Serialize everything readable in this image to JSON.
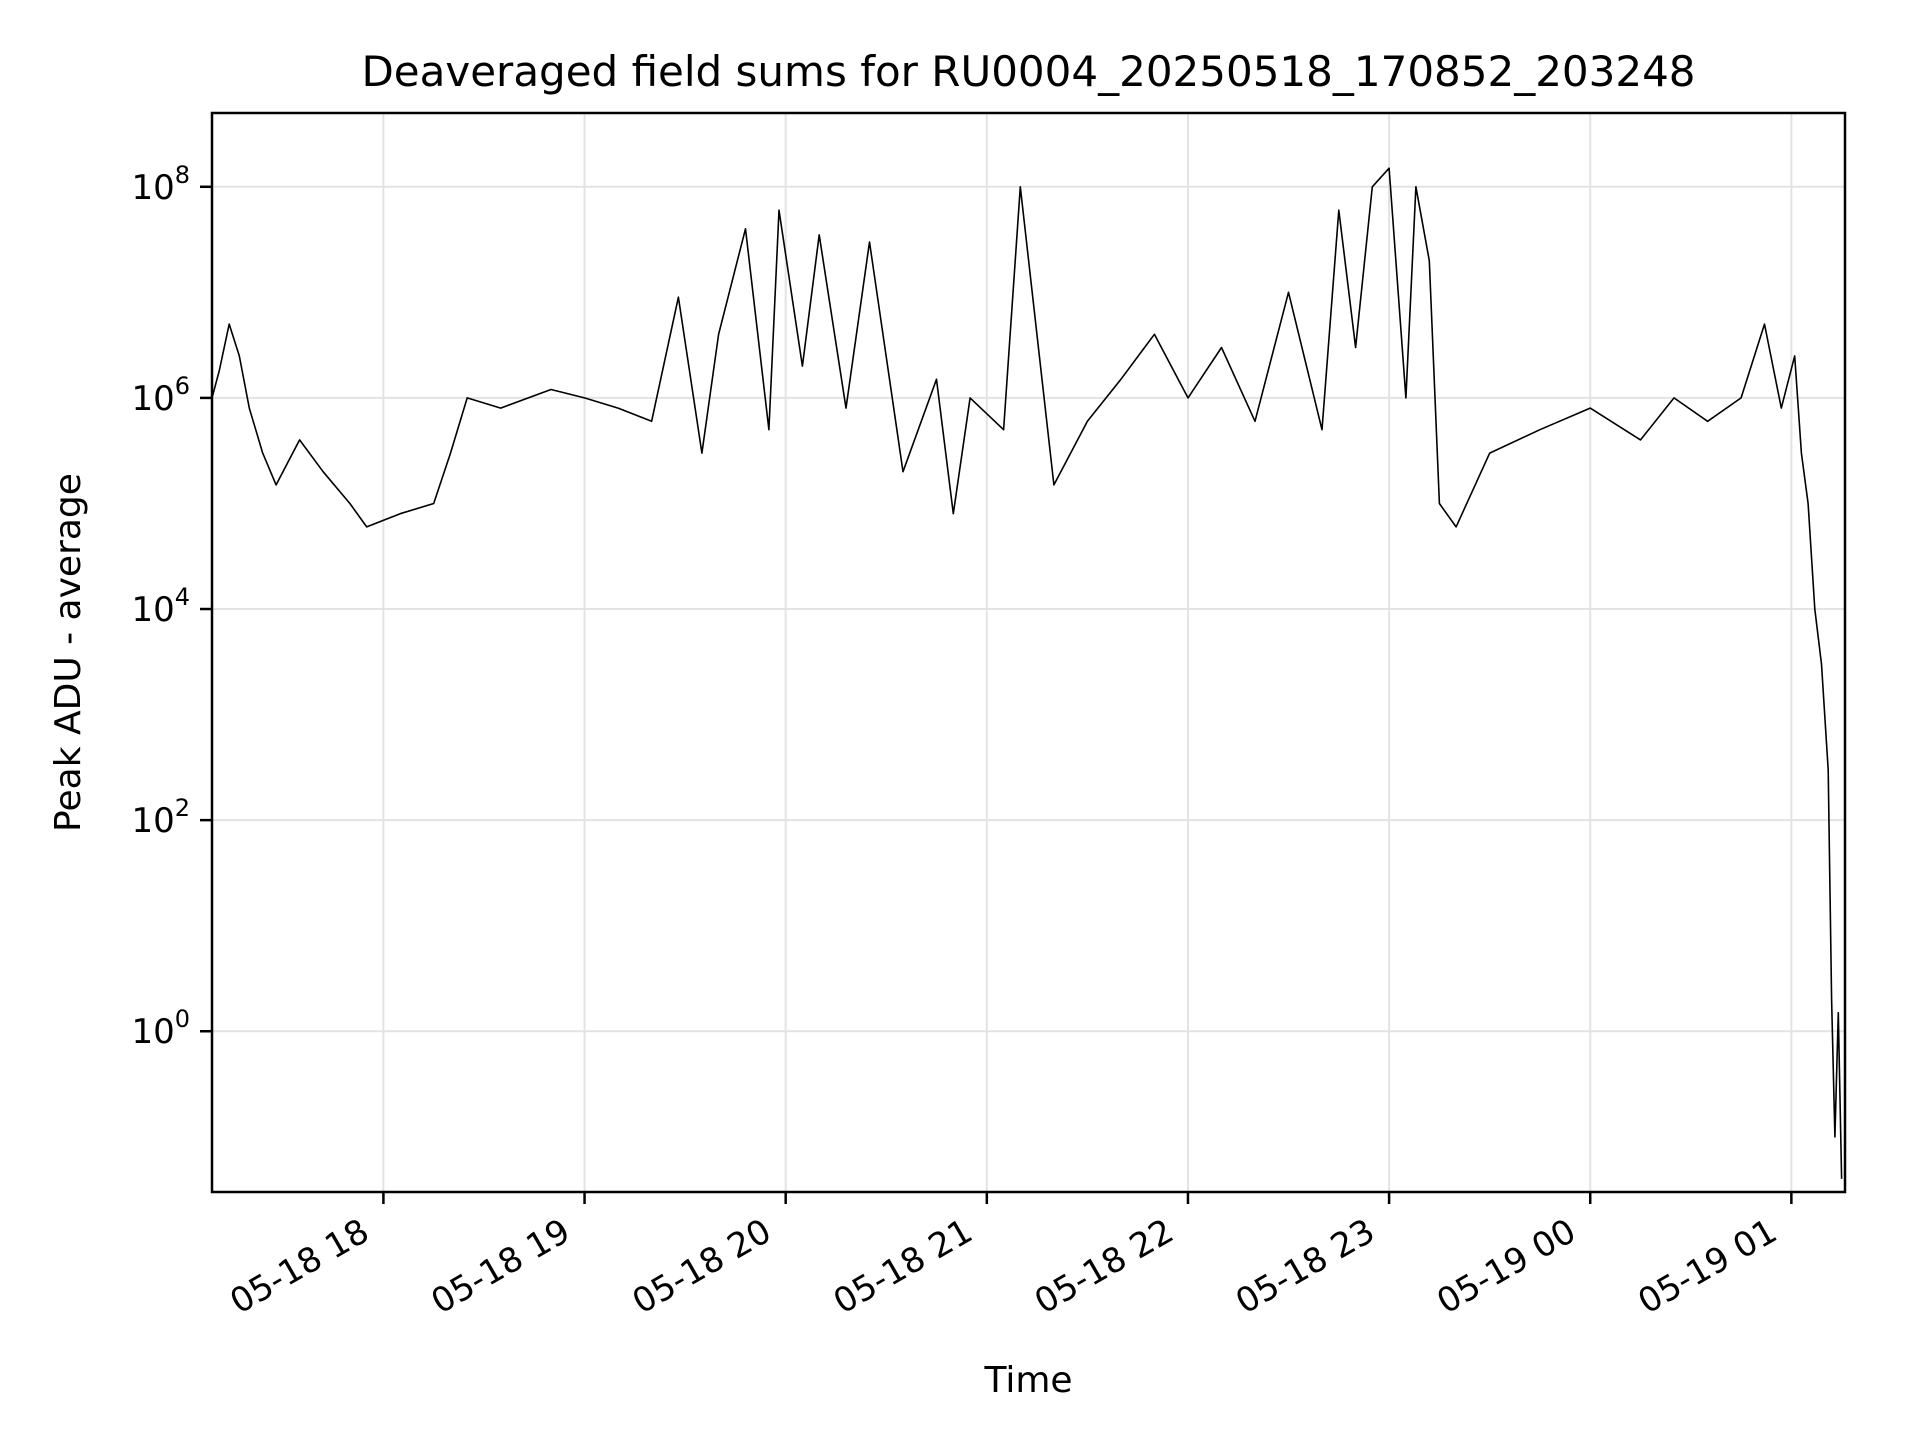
{
  "chart_data": {
    "type": "line",
    "title": "Deaveraged field sums for RU0004_20250518_170852_203248",
    "xlabel": "Time",
    "ylabel": "Peak ADU - average",
    "yscale": "log",
    "grid": true,
    "line_color": "#000000",
    "xlim": [
      "2025-05-18 17:08:52",
      "2025-05-19 01:16:00"
    ],
    "ylim": [
      0.03,
      500000000
    ],
    "x_ticks": [
      {
        "value": "2025-05-18 18:00",
        "label": "05-18 18"
      },
      {
        "value": "2025-05-18 19:00",
        "label": "05-18 19"
      },
      {
        "value": "2025-05-18 20:00",
        "label": "05-18 20"
      },
      {
        "value": "2025-05-18 21:00",
        "label": "05-18 21"
      },
      {
        "value": "2025-05-18 22:00",
        "label": "05-18 22"
      },
      {
        "value": "2025-05-18 23:00",
        "label": "05-18 23"
      },
      {
        "value": "2025-05-19 00:00",
        "label": "05-19 00"
      },
      {
        "value": "2025-05-19 01:00",
        "label": "05-19 01"
      }
    ],
    "y_ticks": [
      {
        "value": 1,
        "base": "10",
        "exp": "0"
      },
      {
        "value": 100,
        "base": "10",
        "exp": "2"
      },
      {
        "value": 10000,
        "base": "10",
        "exp": "4"
      },
      {
        "value": 1000000,
        "base": "10",
        "exp": "6"
      },
      {
        "value": 100000000,
        "base": "10",
        "exp": "8"
      }
    ],
    "series": [
      {
        "points": [
          [
            "2025-05-18 17:08:52",
            1000000
          ],
          [
            "2025-05-18 17:11:00",
            1800000
          ],
          [
            "2025-05-18 17:14:00",
            5000000
          ],
          [
            "2025-05-18 17:17:00",
            2500000
          ],
          [
            "2025-05-18 17:20:00",
            800000
          ],
          [
            "2025-05-18 17:24:00",
            300000
          ],
          [
            "2025-05-18 17:28:00",
            150000
          ],
          [
            "2025-05-18 17:35:00",
            400000
          ],
          [
            "2025-05-18 17:42:00",
            200000
          ],
          [
            "2025-05-18 17:50:00",
            100000
          ],
          [
            "2025-05-18 17:55:00",
            60000
          ],
          [
            "2025-05-18 18:05:00",
            80000
          ],
          [
            "2025-05-18 18:15:00",
            100000
          ],
          [
            "2025-05-18 18:20:00",
            300000
          ],
          [
            "2025-05-18 18:25:00",
            1000000
          ],
          [
            "2025-05-18 18:35:00",
            800000
          ],
          [
            "2025-05-18 18:50:00",
            1200000
          ],
          [
            "2025-05-18 19:00:00",
            1000000
          ],
          [
            "2025-05-18 19:10:00",
            800000
          ],
          [
            "2025-05-18 19:20:00",
            600000
          ],
          [
            "2025-05-18 19:28:00",
            9000000
          ],
          [
            "2025-05-18 19:35:00",
            300000
          ],
          [
            "2025-05-18 19:40:00",
            4000000
          ],
          [
            "2025-05-18 19:48:00",
            40000000
          ],
          [
            "2025-05-18 19:55:00",
            500000
          ],
          [
            "2025-05-18 19:58:00",
            60000000
          ],
          [
            "2025-05-18 20:05:00",
            2000000
          ],
          [
            "2025-05-18 20:10:00",
            35000000
          ],
          [
            "2025-05-18 20:18:00",
            800000
          ],
          [
            "2025-05-18 20:25:00",
            30000000
          ],
          [
            "2025-05-18 20:35:00",
            200000
          ],
          [
            "2025-05-18 20:45:00",
            1500000
          ],
          [
            "2025-05-18 20:50:00",
            80000
          ],
          [
            "2025-05-18 20:55:00",
            1000000
          ],
          [
            "2025-05-18 21:05:00",
            500000
          ],
          [
            "2025-05-18 21:10:00",
            100000000
          ],
          [
            "2025-05-18 21:20:00",
            150000
          ],
          [
            "2025-05-18 21:30:00",
            600000
          ],
          [
            "2025-05-18 21:40:00",
            1500000
          ],
          [
            "2025-05-18 21:50:00",
            4000000
          ],
          [
            "2025-05-18 22:00:00",
            1000000
          ],
          [
            "2025-05-18 22:10:00",
            3000000
          ],
          [
            "2025-05-18 22:20:00",
            600000
          ],
          [
            "2025-05-18 22:30:00",
            10000000
          ],
          [
            "2025-05-18 22:40:00",
            500000
          ],
          [
            "2025-05-18 22:45:00",
            60000000
          ],
          [
            "2025-05-18 22:50:00",
            3000000
          ],
          [
            "2025-05-18 22:55:00",
            100000000
          ],
          [
            "2025-05-18 23:00:00",
            150000000
          ],
          [
            "2025-05-18 23:05:00",
            1000000
          ],
          [
            "2025-05-18 23:08:00",
            100000000
          ],
          [
            "2025-05-18 23:12:00",
            20000000
          ],
          [
            "2025-05-18 23:15:00",
            100000
          ],
          [
            "2025-05-18 23:20:00",
            60000
          ],
          [
            "2025-05-18 23:30:00",
            300000
          ],
          [
            "2025-05-18 23:45:00",
            500000
          ],
          [
            "2025-05-19 00:00:00",
            800000
          ],
          [
            "2025-05-19 00:15:00",
            400000
          ],
          [
            "2025-05-19 00:25:00",
            1000000
          ],
          [
            "2025-05-19 00:35:00",
            600000
          ],
          [
            "2025-05-19 00:45:00",
            1000000
          ],
          [
            "2025-05-19 00:52:00",
            5000000
          ],
          [
            "2025-05-19 00:57:00",
            800000
          ],
          [
            "2025-05-19 01:01:00",
            2500000
          ],
          [
            "2025-05-19 01:03:00",
            300000
          ],
          [
            "2025-05-19 01:05:00",
            100000
          ],
          [
            "2025-05-19 01:07:00",
            10000
          ],
          [
            "2025-05-19 01:09:00",
            3000
          ],
          [
            "2025-05-19 01:11:00",
            300
          ],
          [
            "2025-05-19 01:12:00",
            2
          ],
          [
            "2025-05-19 01:13:00",
            0.1
          ],
          [
            "2025-05-19 01:14:00",
            1.5
          ],
          [
            "2025-05-19 01:15:00",
            0.04
          ]
        ]
      }
    ]
  }
}
